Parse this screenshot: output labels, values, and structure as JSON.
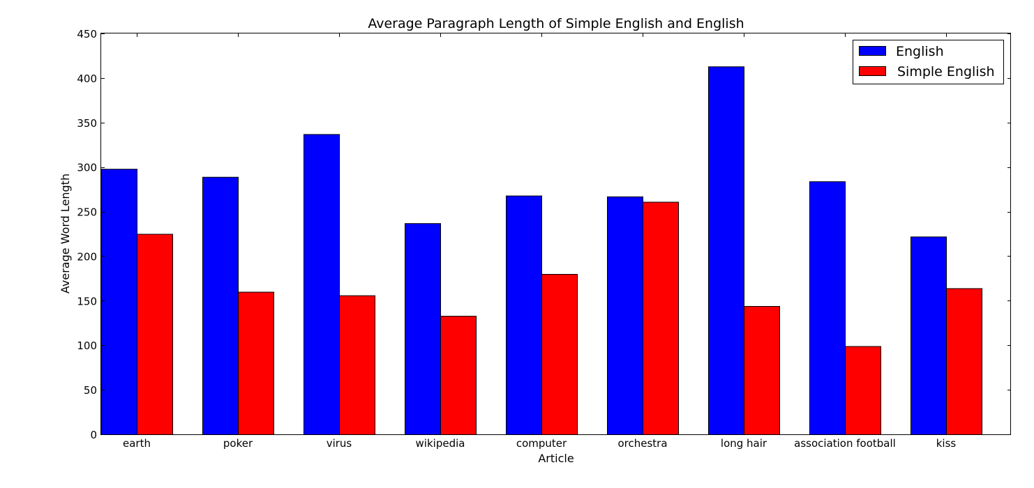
{
  "chart_data": {
    "type": "bar",
    "title": "Average Paragraph Length of Simple English and English",
    "xlabel": "Article",
    "ylabel": "Average Word Length",
    "categories": [
      "earth",
      "poker",
      "virus",
      "wikipedia",
      "computer",
      "orchestra",
      "long hair",
      "association football",
      "kiss"
    ],
    "series": [
      {
        "name": "English",
        "color": "#0000ff",
        "values": [
          298,
          289,
          337,
          237,
          268,
          267,
          413,
          284,
          222
        ]
      },
      {
        "name": "Simple English",
        "color": "#ff0000",
        "values": [
          225,
          160,
          156,
          133,
          180,
          261,
          144,
          99,
          164
        ]
      }
    ],
    "ylim": [
      0,
      450
    ],
    "yticks": [
      0,
      50,
      100,
      150,
      200,
      250,
      300,
      350,
      400,
      450
    ],
    "grid": false,
    "legend": "top-right"
  }
}
